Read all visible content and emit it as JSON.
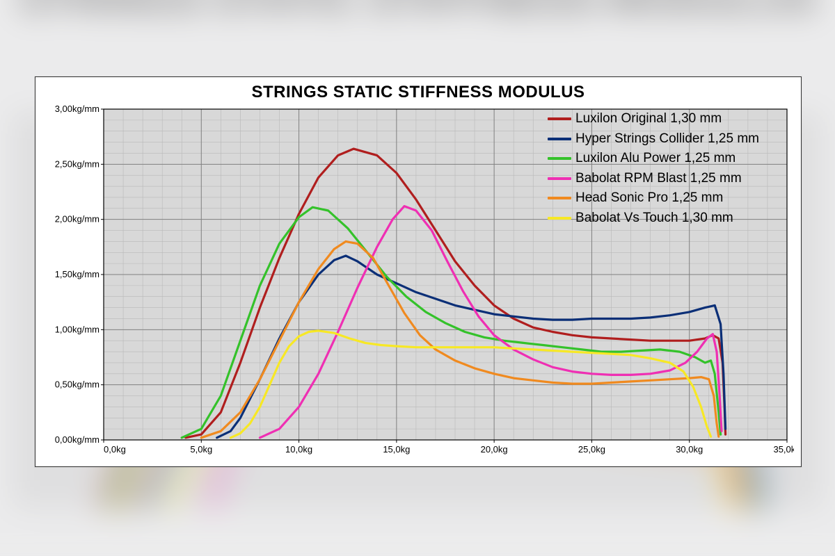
{
  "title": "STRINGS STATIC STIFFNESS MODULUS",
  "chart": {
    "type": "line",
    "background_color": "#ffffff",
    "plot_background_color": "#d8d8d8",
    "grid_major_color": "#808080",
    "grid_minor_color": "#b8b8b8",
    "axis_color": "#000000",
    "title_fontsize": 24,
    "tick_fontsize": 13,
    "legend_fontsize": 19,
    "line_width": 3.2,
    "xlim": [
      0,
      35
    ],
    "ylim": [
      0,
      3
    ],
    "x_major_step": 5,
    "x_minor_step": 1,
    "y_major_step": 0.5,
    "y_minor_step": 0.1,
    "x_tick_labels": [
      "0,0kg",
      "5,0kg",
      "10,0kg",
      "15,0kg",
      "20,0kg",
      "25,0kg",
      "30,0kg",
      "35,0kg"
    ],
    "y_tick_labels": [
      "0,00kg/mm",
      "0,50kg/mm",
      "1,00kg/mm",
      "1,50kg/mm",
      "2,00kg/mm",
      "2,50kg/mm",
      "3,00kg/mm"
    ],
    "series": [
      {
        "name": "Luxilon Original 1,30 mm",
        "color": "#b01e1e",
        "points": [
          [
            4.2,
            0.02
          ],
          [
            5.0,
            0.05
          ],
          [
            6.0,
            0.25
          ],
          [
            7.0,
            0.7
          ],
          [
            8.0,
            1.2
          ],
          [
            9.0,
            1.65
          ],
          [
            10.0,
            2.05
          ],
          [
            11.0,
            2.38
          ],
          [
            12.0,
            2.58
          ],
          [
            12.8,
            2.64
          ],
          [
            14.0,
            2.58
          ],
          [
            15.0,
            2.42
          ],
          [
            16.0,
            2.18
          ],
          [
            17.0,
            1.9
          ],
          [
            18.0,
            1.62
          ],
          [
            19.0,
            1.4
          ],
          [
            20.0,
            1.22
          ],
          [
            21.0,
            1.1
          ],
          [
            22.0,
            1.02
          ],
          [
            23.0,
            0.98
          ],
          [
            24.0,
            0.95
          ],
          [
            25.0,
            0.93
          ],
          [
            26.0,
            0.92
          ],
          [
            27.0,
            0.91
          ],
          [
            28.0,
            0.9
          ],
          [
            29.0,
            0.9
          ],
          [
            30.0,
            0.9
          ],
          [
            30.8,
            0.92
          ],
          [
            31.2,
            0.95
          ],
          [
            31.5,
            0.92
          ],
          [
            31.7,
            0.7
          ],
          [
            31.8,
            0.3
          ],
          [
            31.85,
            0.05
          ]
        ]
      },
      {
        "name": "Hyper Strings Collider 1,25 mm",
        "color": "#0b2f77",
        "points": [
          [
            5.8,
            0.02
          ],
          [
            6.5,
            0.08
          ],
          [
            7.0,
            0.2
          ],
          [
            8.0,
            0.55
          ],
          [
            9.0,
            0.92
          ],
          [
            10.0,
            1.25
          ],
          [
            11.0,
            1.5
          ],
          [
            11.8,
            1.63
          ],
          [
            12.4,
            1.67
          ],
          [
            13.0,
            1.62
          ],
          [
            14.0,
            1.5
          ],
          [
            15.0,
            1.42
          ],
          [
            16.0,
            1.34
          ],
          [
            17.0,
            1.28
          ],
          [
            18.0,
            1.22
          ],
          [
            19.0,
            1.18
          ],
          [
            20.0,
            1.14
          ],
          [
            21.0,
            1.12
          ],
          [
            22.0,
            1.1
          ],
          [
            23.0,
            1.09
          ],
          [
            24.0,
            1.09
          ],
          [
            25.0,
            1.1
          ],
          [
            26.0,
            1.1
          ],
          [
            27.0,
            1.1
          ],
          [
            28.0,
            1.11
          ],
          [
            29.0,
            1.13
          ],
          [
            30.0,
            1.16
          ],
          [
            30.8,
            1.2
          ],
          [
            31.3,
            1.22
          ],
          [
            31.6,
            1.05
          ],
          [
            31.75,
            0.6
          ],
          [
            31.85,
            0.1
          ]
        ]
      },
      {
        "name": "Luxilon Alu Power 1,25 mm",
        "color": "#34c22a",
        "points": [
          [
            4.0,
            0.02
          ],
          [
            5.0,
            0.1
          ],
          [
            6.0,
            0.4
          ],
          [
            7.0,
            0.9
          ],
          [
            8.0,
            1.4
          ],
          [
            9.0,
            1.78
          ],
          [
            10.0,
            2.02
          ],
          [
            10.7,
            2.11
          ],
          [
            11.5,
            2.08
          ],
          [
            12.5,
            1.92
          ],
          [
            13.5,
            1.7
          ],
          [
            14.5,
            1.48
          ],
          [
            15.5,
            1.3
          ],
          [
            16.5,
            1.16
          ],
          [
            17.5,
            1.06
          ],
          [
            18.5,
            0.98
          ],
          [
            19.5,
            0.93
          ],
          [
            20.5,
            0.9
          ],
          [
            21.5,
            0.88
          ],
          [
            22.5,
            0.86
          ],
          [
            23.5,
            0.84
          ],
          [
            24.5,
            0.82
          ],
          [
            25.5,
            0.8
          ],
          [
            26.5,
            0.8
          ],
          [
            27.5,
            0.81
          ],
          [
            28.5,
            0.82
          ],
          [
            29.5,
            0.8
          ],
          [
            30.3,
            0.75
          ],
          [
            30.8,
            0.7
          ],
          [
            31.1,
            0.72
          ],
          [
            31.3,
            0.6
          ],
          [
            31.5,
            0.25
          ],
          [
            31.6,
            0.05
          ]
        ]
      },
      {
        "name": "Babolat RPM Blast 1,25 mm",
        "color": "#ef2fb3",
        "points": [
          [
            8.0,
            0.02
          ],
          [
            9.0,
            0.1
          ],
          [
            10.0,
            0.3
          ],
          [
            11.0,
            0.6
          ],
          [
            12.0,
            0.98
          ],
          [
            13.0,
            1.38
          ],
          [
            14.0,
            1.75
          ],
          [
            14.8,
            2.0
          ],
          [
            15.4,
            2.12
          ],
          [
            16.0,
            2.08
          ],
          [
            16.8,
            1.9
          ],
          [
            17.6,
            1.62
          ],
          [
            18.4,
            1.35
          ],
          [
            19.2,
            1.12
          ],
          [
            20.0,
            0.95
          ],
          [
            21.0,
            0.82
          ],
          [
            22.0,
            0.73
          ],
          [
            23.0,
            0.66
          ],
          [
            24.0,
            0.62
          ],
          [
            25.0,
            0.6
          ],
          [
            26.0,
            0.59
          ],
          [
            27.0,
            0.59
          ],
          [
            28.0,
            0.6
          ],
          [
            29.0,
            0.63
          ],
          [
            29.8,
            0.7
          ],
          [
            30.4,
            0.8
          ],
          [
            30.9,
            0.92
          ],
          [
            31.2,
            0.96
          ],
          [
            31.4,
            0.8
          ],
          [
            31.55,
            0.4
          ],
          [
            31.65,
            0.08
          ]
        ]
      },
      {
        "name": "Head Sonic Pro 1,25 mm",
        "color": "#f08a1f",
        "points": [
          [
            5.0,
            0.02
          ],
          [
            6.0,
            0.08
          ],
          [
            7.0,
            0.25
          ],
          [
            8.0,
            0.55
          ],
          [
            9.0,
            0.9
          ],
          [
            10.0,
            1.25
          ],
          [
            11.0,
            1.55
          ],
          [
            11.8,
            1.73
          ],
          [
            12.4,
            1.8
          ],
          [
            13.0,
            1.78
          ],
          [
            13.8,
            1.65
          ],
          [
            14.6,
            1.4
          ],
          [
            15.4,
            1.15
          ],
          [
            16.2,
            0.95
          ],
          [
            17.0,
            0.82
          ],
          [
            18.0,
            0.72
          ],
          [
            19.0,
            0.65
          ],
          [
            20.0,
            0.6
          ],
          [
            21.0,
            0.56
          ],
          [
            22.0,
            0.54
          ],
          [
            23.0,
            0.52
          ],
          [
            24.0,
            0.51
          ],
          [
            25.0,
            0.51
          ],
          [
            26.0,
            0.52
          ],
          [
            27.0,
            0.53
          ],
          [
            28.0,
            0.54
          ],
          [
            29.0,
            0.55
          ],
          [
            30.0,
            0.56
          ],
          [
            30.6,
            0.57
          ],
          [
            31.0,
            0.55
          ],
          [
            31.25,
            0.4
          ],
          [
            31.4,
            0.15
          ],
          [
            31.5,
            0.03
          ]
        ]
      },
      {
        "name": "Babolat Vs Touch 1,30 mm",
        "color": "#f7e825",
        "points": [
          [
            6.5,
            0.02
          ],
          [
            7.0,
            0.06
          ],
          [
            7.5,
            0.15
          ],
          [
            8.0,
            0.3
          ],
          [
            8.5,
            0.5
          ],
          [
            9.0,
            0.7
          ],
          [
            9.5,
            0.85
          ],
          [
            10.0,
            0.94
          ],
          [
            10.5,
            0.98
          ],
          [
            11.0,
            0.99
          ],
          [
            11.8,
            0.97
          ],
          [
            12.6,
            0.92
          ],
          [
            13.4,
            0.88
          ],
          [
            14.2,
            0.86
          ],
          [
            15.0,
            0.85
          ],
          [
            16.0,
            0.84
          ],
          [
            17.0,
            0.84
          ],
          [
            18.0,
            0.84
          ],
          [
            19.0,
            0.84
          ],
          [
            20.0,
            0.84
          ],
          [
            21.0,
            0.83
          ],
          [
            22.0,
            0.82
          ],
          [
            23.0,
            0.81
          ],
          [
            24.0,
            0.8
          ],
          [
            25.0,
            0.79
          ],
          [
            26.0,
            0.78
          ],
          [
            27.0,
            0.77
          ],
          [
            28.0,
            0.74
          ],
          [
            29.0,
            0.7
          ],
          [
            29.7,
            0.62
          ],
          [
            30.2,
            0.48
          ],
          [
            30.6,
            0.3
          ],
          [
            30.9,
            0.12
          ],
          [
            31.1,
            0.03
          ]
        ]
      }
    ]
  }
}
